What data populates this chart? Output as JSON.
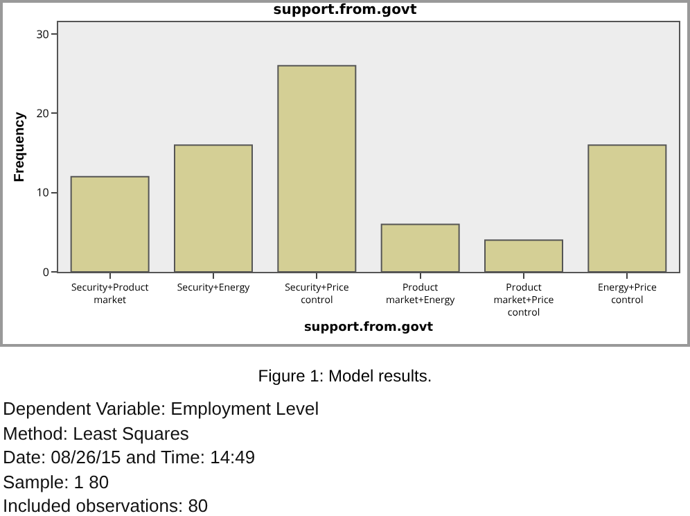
{
  "chart_data": {
    "type": "bar",
    "title": "support.from.govt",
    "xlabel": "support.from.govt",
    "ylabel": "Frequency",
    "categories": [
      "Security+Product market",
      "Security+Energy",
      "Security+Price control",
      "Product market+Energy",
      "Product market+Price control",
      "Energy+Price control"
    ],
    "values": [
      12,
      16,
      26,
      6,
      4,
      16
    ],
    "color": "#d4cf95",
    "ylim": [
      0,
      31.5
    ],
    "yticks": [
      0,
      10,
      20,
      30
    ],
    "grid": false,
    "legend": false,
    "annotations": [
      "Figure 1: Model results.",
      "Dependent Variable: Employment Level",
      "Method: Least Squares",
      "Date: 08/26/15 and Time: 14:49",
      "Sample: 1 80",
      "Included observations: 80"
    ]
  }
}
